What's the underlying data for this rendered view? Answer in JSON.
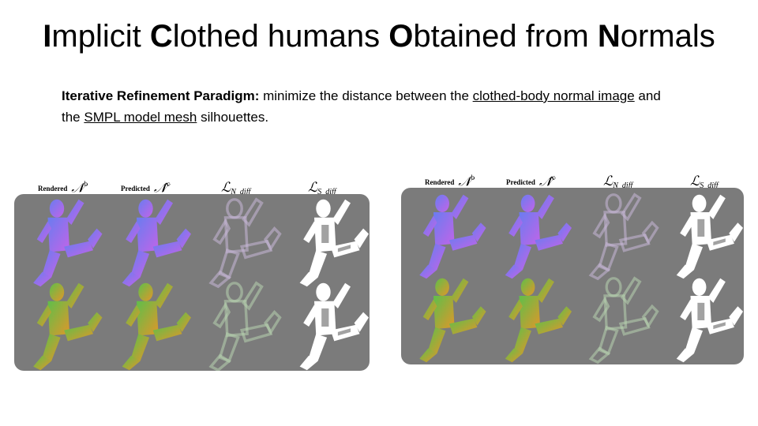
{
  "title": {
    "parts": [
      {
        "t": "I",
        "b": true
      },
      {
        "t": "mplicit ",
        "b": false
      },
      {
        "t": "C",
        "b": true
      },
      {
        "t": "lothed humans ",
        "b": false
      },
      {
        "t": "O",
        "b": true
      },
      {
        "t": "btained from ",
        "b": false
      },
      {
        "t": "N",
        "b": true
      },
      {
        "t": "ormals",
        "b": false
      }
    ]
  },
  "description": {
    "lead": "Iterative Refinement Paradigm:",
    "text1": " minimize the distance between the ",
    "link1": "clothed-body normal image",
    "text2": " and the ",
    "link2": "SMPL model mesh",
    "text3": " silhouettes."
  },
  "figure": {
    "col1_word": "Rendered",
    "col1_sym": "𝒩",
    "col1_sup": "b",
    "col2_word": "Predicted",
    "col2_sym": "𝒩̂",
    "col2_sup": "c",
    "col3_sym": "ℒ",
    "col3_sub": "N_diff",
    "col4_sym": "ℒ",
    "col4_sub": "S_diff"
  },
  "colors": {
    "panel_bg": "#7b7b7b",
    "normal_blue": "#6a7cf0",
    "normal_magenta": "#c264e8",
    "normal_green": "#5fbf4a",
    "normal_orange": "#e0962a",
    "silhouette": "#ffffff"
  }
}
